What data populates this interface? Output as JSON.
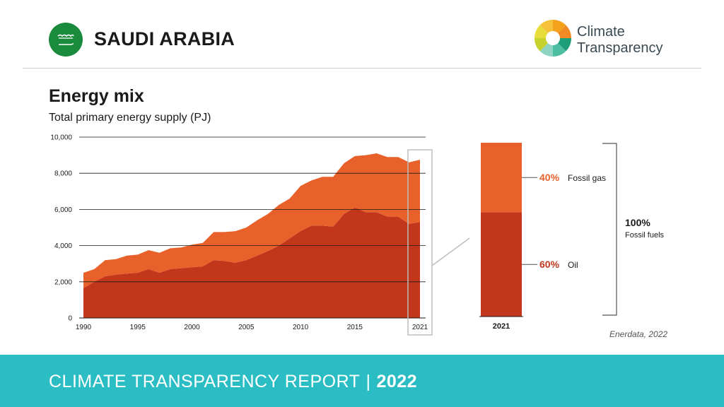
{
  "header": {
    "country": "SAUDI ARABIA",
    "logo_line1": "Climate",
    "logo_line2": "Transparency"
  },
  "title": "Energy mix",
  "subtitle": "Total primary energy supply (PJ)",
  "source": "Enerdata, 2022",
  "footer": {
    "report": "CLIMATE TRANSPARENCY REPORT",
    "separator": "|",
    "year": "2022"
  },
  "chart_data": [
    {
      "type": "area",
      "stacked": true,
      "x": [
        1990,
        1991,
        1992,
        1993,
        1994,
        1995,
        1996,
        1997,
        1998,
        1999,
        2000,
        2001,
        2002,
        2003,
        2004,
        2005,
        2006,
        2007,
        2008,
        2009,
        2010,
        2011,
        2012,
        2013,
        2014,
        2015,
        2016,
        2017,
        2018,
        2019,
        2020,
        2021
      ],
      "x_ticks": [
        "1990",
        "1995",
        "2000",
        "2005",
        "2010",
        "2015",
        "2021"
      ],
      "y_ticks": [
        "0",
        "2,000",
        "4,000",
        "6,000",
        "8,000",
        "10,000"
      ],
      "ylim": [
        0,
        10000
      ],
      "grid": true,
      "series": [
        {
          "name": "Oil",
          "color": "#c2361c",
          "values": [
            1650,
            2000,
            2300,
            2400,
            2450,
            2500,
            2700,
            2500,
            2700,
            2750,
            2800,
            2850,
            3200,
            3150,
            3050,
            3200,
            3450,
            3700,
            4000,
            4400,
            4800,
            5100,
            5100,
            5050,
            5750,
            6100,
            5850,
            5850,
            5600,
            5600,
            5200,
            5300
          ]
        },
        {
          "name": "Fossil gas",
          "color": "#e8612a",
          "values": [
            850,
            700,
            900,
            850,
            1000,
            1000,
            1050,
            1100,
            1150,
            1150,
            1250,
            1300,
            1550,
            1600,
            1750,
            1800,
            1950,
            2050,
            2250,
            2200,
            2500,
            2500,
            2700,
            2750,
            2800,
            2850,
            3150,
            3250,
            3300,
            3300,
            3400,
            3450
          ]
        }
      ],
      "highlight_year": "2021"
    },
    {
      "type": "bar",
      "stacked": true,
      "categories": [
        "2021"
      ],
      "series": [
        {
          "name": "Oil",
          "values": [
            60
          ],
          "label": "60%",
          "color": "#c2361c"
        },
        {
          "name": "Fossil gas",
          "values": [
            40
          ],
          "label": "40%",
          "color": "#e8612a"
        }
      ],
      "total_label": "100%",
      "total_name": "Fossil fuels"
    }
  ]
}
